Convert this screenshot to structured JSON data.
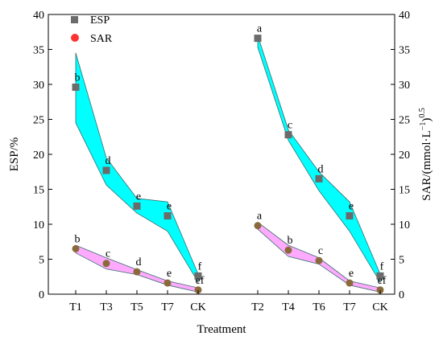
{
  "chart_data": {
    "type": "scatter",
    "xlabel": "Treatment",
    "ylabel_left": "ESP/%",
    "ylabel_right": "SAR/(mmol·L",
    "ylabel_right_exp1": "−1",
    "ylabel_right_mid": ")",
    "ylabel_right_exp2": "0.5",
    "ylim": [
      0,
      40
    ],
    "yticks": [
      0,
      5,
      10,
      15,
      20,
      25,
      30,
      35,
      40
    ],
    "legend": {
      "position": "top-left",
      "entries": [
        {
          "name": "ESP",
          "color": "#666666",
          "marker": "square"
        },
        {
          "name": "SAR",
          "color": "#ff3333",
          "marker": "circle"
        }
      ]
    },
    "groups": [
      {
        "categories": [
          "T1",
          "T3",
          "T5",
          "T7",
          "CK"
        ],
        "series": [
          {
            "name": "ESP",
            "values": [
              29.6,
              17.7,
              12.6,
              11.2,
              2.6
            ],
            "labels": [
              "b",
              "d",
              "e",
              "e",
              "f"
            ],
            "band_upper": [
              34.5,
              19.5,
              13.7,
              13.2,
              2.9
            ],
            "band_lower": [
              24.5,
              15.6,
              11.6,
              9.0,
              1.7
            ],
            "fill": "#00ffff"
          },
          {
            "name": "SAR",
            "values": [
              6.5,
              4.4,
              3.2,
              1.6,
              0.6
            ],
            "labels": [
              "b",
              "c",
              "d",
              "e",
              "ef"
            ],
            "band_upper": [
              7.0,
              5.2,
              3.5,
              1.9,
              0.9
            ],
            "band_lower": [
              5.9,
              3.6,
              2.8,
              1.3,
              0.3
            ],
            "fill": "#ffaaff"
          }
        ]
      },
      {
        "categories": [
          "T2",
          "T4",
          "T6",
          "T7",
          "CK"
        ],
        "series": [
          {
            "name": "ESP",
            "values": [
              36.6,
              22.8,
              16.5,
              11.2,
              2.6
            ],
            "labels": [
              "a",
              "c",
              "d",
              "e",
              "f"
            ],
            "band_upper": [
              37.0,
              23.5,
              17.5,
              13.2,
              2.9
            ],
            "band_lower": [
              35.3,
              22.0,
              14.8,
              9.0,
              1.7
            ],
            "fill": "#00ffff"
          },
          {
            "name": "SAR",
            "values": [
              9.8,
              6.3,
              4.8,
              1.6,
              0.6
            ],
            "labels": [
              "a",
              "b",
              "c",
              "e",
              "ef"
            ],
            "band_upper": [
              10.3,
              7.0,
              5.2,
              1.9,
              0.9
            ],
            "band_lower": [
              9.3,
              5.4,
              4.3,
              1.3,
              0.3
            ],
            "fill": "#ffaaff"
          }
        ]
      }
    ]
  },
  "colors": {
    "esp_marker": "#6b6b6b",
    "sar_marker": "#8a6a3a",
    "sar_legend": "#ff3333",
    "band_stroke": "#3a6e6e"
  }
}
